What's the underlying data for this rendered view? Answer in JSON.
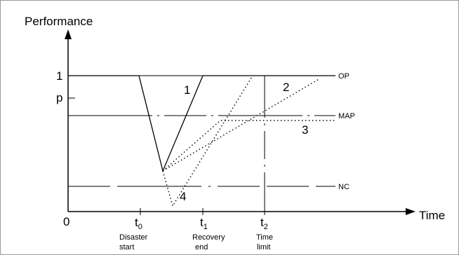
{
  "axes": {
    "y_title": "Performance",
    "x_title": "Time",
    "origin": "0",
    "y_tick_1": "1",
    "y_tick_p": "p"
  },
  "time_marks": [
    {
      "base": "t",
      "sub": "0",
      "caption1": "Disaster",
      "caption2": "start"
    },
    {
      "base": "t",
      "sub": "1",
      "caption1": "Recovery",
      "caption2": "end"
    },
    {
      "base": "t",
      "sub": "2",
      "caption1": "Time",
      "caption2": "limit"
    }
  ],
  "levels": {
    "op": "OP",
    "map": "MAP",
    "nc": "NC"
  },
  "curve_labels": {
    "c1": "1",
    "c2": "2",
    "c3": "3",
    "c4": "4"
  },
  "colors": {
    "line": "#000000",
    "frame": "#9a9a9a",
    "background": "#ffffff"
  }
}
